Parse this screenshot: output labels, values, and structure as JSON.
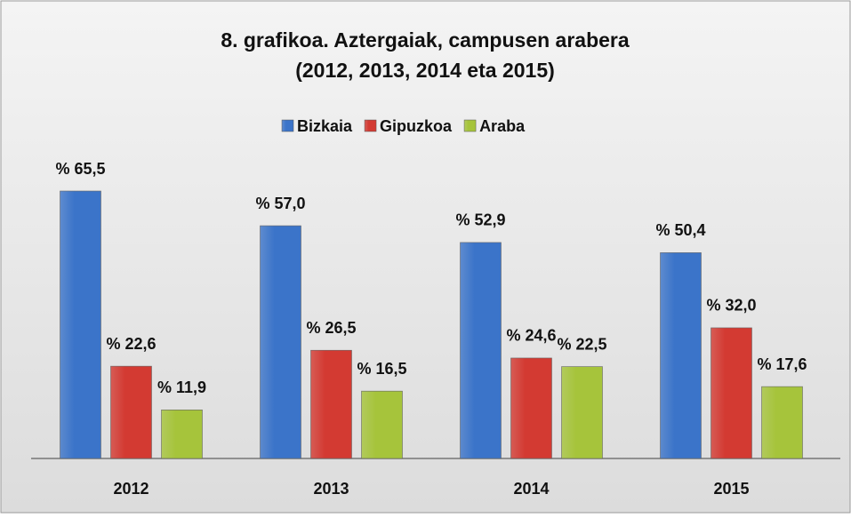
{
  "chart_data": {
    "type": "bar",
    "title": "8. grafikoa. Aztergaiak, campusen arabera",
    "subtitle": "(2012, 2013,  2014 eta 2015)",
    "categories": [
      "2012",
      "2013",
      "2014",
      "2015"
    ],
    "legend": "top",
    "series": [
      {
        "name": "Bizkaia",
        "color": "#3b74c9",
        "values": [
          65.5,
          57.0,
          52.9,
          50.4
        ],
        "value_labels": [
          "% 65,5",
          "% 57,0",
          "% 52,9",
          "% 50,4"
        ]
      },
      {
        "name": "Gipuzkoa",
        "color": "#d33a32",
        "values": [
          22.6,
          26.5,
          24.6,
          32.0
        ],
        "value_labels": [
          "% 22,6",
          "% 26,5",
          "% 24,6",
          "% 32,0"
        ]
      },
      {
        "name": "Araba",
        "color": "#a6c43b",
        "values": [
          11.9,
          16.5,
          22.5,
          17.6
        ],
        "value_labels": [
          "% 11,9",
          "% 16,5",
          "% 22,5",
          "% 17,6"
        ]
      }
    ]
  }
}
